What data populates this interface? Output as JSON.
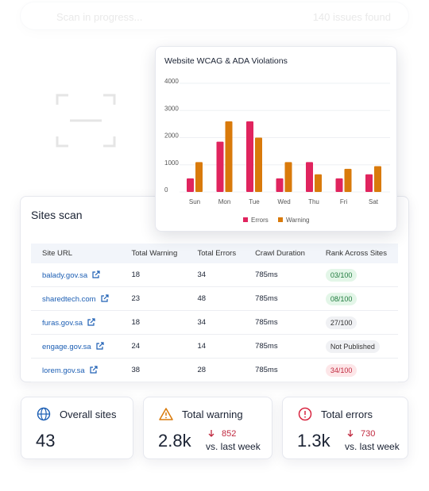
{
  "banner": {
    "status": "Scan in progress...",
    "issues": "140 issues found"
  },
  "chart_data": {
    "type": "bar",
    "title": "Website WCAG & ADA Violations",
    "categories": [
      "Sun",
      "Mon",
      "Tue",
      "Wed",
      "Thu",
      "Fri",
      "Sat"
    ],
    "series": [
      {
        "name": "Errors",
        "color": "#e0245e",
        "values": [
          500,
          1850,
          2600,
          500,
          1100,
          500,
          650
        ]
      },
      {
        "name": "Warning",
        "color": "#d97a0b",
        "values": [
          1100,
          2600,
          2000,
          1100,
          650,
          850,
          950
        ]
      }
    ],
    "ylim": [
      0,
      4000
    ],
    "yticks": [
      0,
      1000,
      2000,
      3000,
      4000
    ],
    "grid": true,
    "legend": "bottom"
  },
  "table": {
    "title": "Sites scan",
    "columns": [
      "Site URL",
      "Total Warning",
      "Total Errors",
      "Crawl Duration",
      "Rank Across Sites"
    ],
    "rows": [
      [
        "balady.gov.sa",
        "18",
        "34",
        "785ms",
        "03/100"
      ],
      [
        "sharedtech.com",
        "23",
        "48",
        "785ms",
        "08/100"
      ],
      [
        "furas.gov.sa",
        "18",
        "34",
        "785ms",
        "27/100"
      ],
      [
        "engage.gov.sa",
        "24",
        "14",
        "785ms",
        "Not Published"
      ],
      [
        "lorem.gov.sa",
        "38",
        "28",
        "785ms",
        "34/100"
      ]
    ],
    "badge_colors": [
      [
        "#e3f6e8",
        "#1f7a3d"
      ],
      [
        "#e3f6e8",
        "#1f7a3d"
      ],
      [
        "#f0f1f4",
        "#333"
      ],
      [
        "#f0f1f4",
        "#333"
      ],
      [
        "#fde6e8",
        "#c0283e"
      ]
    ]
  },
  "cards": [
    {
      "title": "Overall sites",
      "value": "43"
    },
    {
      "title": "Total warning",
      "value": "2.8k",
      "change": "852",
      "note": "vs. last week"
    },
    {
      "title": "Total errors",
      "value": "1.3k",
      "change": "730",
      "note": "vs. last week"
    }
  ]
}
